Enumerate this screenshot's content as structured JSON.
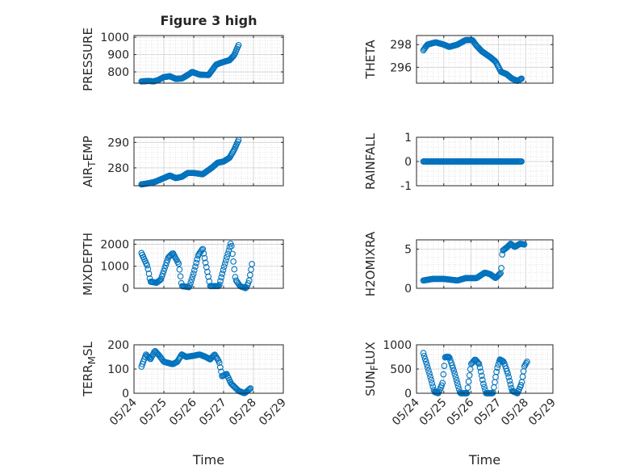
{
  "chart_data": [
    {
      "type": "scatter",
      "title": "Figure 3 high",
      "ylabel": "PRESSURE",
      "ylim": [
        735,
        1010
      ],
      "yticks": [
        800,
        900,
        1000
      ],
      "xlim": [
        0,
        5
      ],
      "xticks": [
        0,
        1,
        2,
        3,
        4,
        5
      ],
      "xticklabels": [],
      "grid": true,
      "anchors": [
        [
          0.25,
          745
        ],
        [
          0.5,
          748
        ],
        [
          0.65,
          745
        ],
        [
          0.8,
          752
        ],
        [
          1.0,
          770
        ],
        [
          1.2,
          775
        ],
        [
          1.4,
          760
        ],
        [
          1.6,
          762
        ],
        [
          1.8,
          782
        ],
        [
          1.95,
          800
        ],
        [
          2.2,
          784
        ],
        [
          2.5,
          782
        ],
        [
          2.75,
          842
        ],
        [
          2.9,
          852
        ],
        [
          3.2,
          868
        ],
        [
          3.35,
          895
        ],
        [
          3.5,
          955
        ]
      ]
    },
    {
      "type": "scatter",
      "title": "",
      "ylabel": "THETA",
      "ylim": [
        294.6,
        298.8
      ],
      "yticks": [
        296,
        298
      ],
      "xlim": [
        0,
        5
      ],
      "xticks": [
        0,
        1,
        2,
        3,
        4,
        5
      ],
      "xticklabels": [],
      "grid": true,
      "anchors": [
        [
          0.25,
          297.5
        ],
        [
          0.4,
          298.0
        ],
        [
          0.7,
          298.2
        ],
        [
          1.0,
          298.0
        ],
        [
          1.2,
          297.8
        ],
        [
          1.5,
          298.0
        ],
        [
          1.8,
          298.4
        ],
        [
          2.05,
          298.4
        ],
        [
          2.2,
          297.9
        ],
        [
          2.4,
          297.4
        ],
        [
          2.7,
          296.9
        ],
        [
          2.9,
          296.5
        ],
        [
          3.1,
          295.6
        ],
        [
          3.3,
          295.4
        ],
        [
          3.5,
          295.0
        ],
        [
          3.7,
          294.8
        ],
        [
          3.85,
          295.0
        ]
      ]
    },
    {
      "type": "scatter",
      "title": "",
      "ylabel": "AIR_TEMP",
      "ylim": [
        273,
        292
      ],
      "yticks": [
        280,
        290
      ],
      "xlim": [
        0,
        5
      ],
      "xticks": [
        0,
        1,
        2,
        3,
        4,
        5
      ],
      "xticklabels": [],
      "grid": true,
      "anchors": [
        [
          0.25,
          273.5
        ],
        [
          0.5,
          274.0
        ],
        [
          0.7,
          274.5
        ],
        [
          1.0,
          276.0
        ],
        [
          1.2,
          277.0
        ],
        [
          1.4,
          276.0
        ],
        [
          1.6,
          276.5
        ],
        [
          1.8,
          278.0
        ],
        [
          2.0,
          278.0
        ],
        [
          2.3,
          277.5
        ],
        [
          2.6,
          280.0
        ],
        [
          2.8,
          282.0
        ],
        [
          3.0,
          282.5
        ],
        [
          3.2,
          284.0
        ],
        [
          3.35,
          287.0
        ],
        [
          3.5,
          291.0
        ]
      ]
    },
    {
      "type": "scatter",
      "title": "",
      "ylabel": "RAINFALL",
      "ylim": [
        -1,
        1
      ],
      "yticks": [
        -1,
        0,
        1
      ],
      "xlim": [
        0,
        5
      ],
      "xticks": [
        0,
        1,
        2,
        3,
        4,
        5
      ],
      "xticklabels": [],
      "grid": true,
      "anchors": [
        [
          0.25,
          0
        ],
        [
          3.85,
          0
        ]
      ]
    },
    {
      "type": "scatter",
      "title": "",
      "ylabel": "MIXDEPTH",
      "ylim": [
        0,
        2200
      ],
      "yticks": [
        0,
        1000,
        2000
      ],
      "xlim": [
        0,
        5
      ],
      "xticks": [
        0,
        1,
        2,
        3,
        4,
        5
      ],
      "xticklabels": [],
      "grid": true,
      "anchors": [
        [
          0.25,
          1600
        ],
        [
          0.45,
          1000
        ],
        [
          0.55,
          300
        ],
        [
          0.75,
          250
        ],
        [
          0.9,
          400
        ],
        [
          1.15,
          1400
        ],
        [
          1.3,
          1600
        ],
        [
          1.5,
          1100
        ],
        [
          1.6,
          100
        ],
        [
          1.85,
          50
        ],
        [
          2.0,
          700
        ],
        [
          2.15,
          1500
        ],
        [
          2.3,
          1800
        ],
        [
          2.45,
          800
        ],
        [
          2.55,
          100
        ],
        [
          2.85,
          100
        ],
        [
          3.0,
          900
        ],
        [
          3.15,
          1600
        ],
        [
          3.25,
          2100
        ],
        [
          3.4,
          400
        ],
        [
          3.55,
          100
        ],
        [
          3.75,
          0
        ],
        [
          3.85,
          300
        ],
        [
          3.95,
          1100
        ]
      ]
    },
    {
      "type": "scatter",
      "title": "",
      "ylabel": "H2OMIXRA",
      "ylim": [
        0,
        6.2
      ],
      "yticks": [
        0,
        5
      ],
      "xlim": [
        0,
        5
      ],
      "xticks": [
        0,
        1,
        2,
        3,
        4,
        5
      ],
      "xticklabels": [],
      "grid": true,
      "anchors": [
        [
          0.25,
          1.0
        ],
        [
          0.6,
          1.2
        ],
        [
          1.0,
          1.2
        ],
        [
          1.5,
          1.0
        ],
        [
          1.8,
          1.3
        ],
        [
          2.2,
          1.3
        ],
        [
          2.5,
          2.0
        ],
        [
          2.7,
          1.8
        ],
        [
          2.9,
          1.3
        ],
        [
          3.1,
          2.0
        ],
        [
          3.15,
          4.8
        ],
        [
          3.3,
          5.2
        ],
        [
          3.45,
          5.7
        ],
        [
          3.6,
          5.3
        ],
        [
          3.8,
          5.7
        ],
        [
          3.95,
          5.6
        ]
      ]
    },
    {
      "type": "scatter",
      "title": "",
      "ylabel": "TERR_MSL",
      "ylim": [
        0,
        200
      ],
      "yticks": [
        0,
        100,
        200
      ],
      "xlim": [
        0,
        5
      ],
      "xticks": [
        0,
        1,
        2,
        3,
        4,
        5
      ],
      "xticklabels": [
        "05/24",
        "05/25",
        "05/26",
        "05/27",
        "05/28",
        "05/29"
      ],
      "xlabel": "Time",
      "grid": true,
      "anchors": [
        [
          0.25,
          110
        ],
        [
          0.4,
          160
        ],
        [
          0.55,
          140
        ],
        [
          0.7,
          175
        ],
        [
          0.85,
          155
        ],
        [
          1.0,
          130
        ],
        [
          1.3,
          120
        ],
        [
          1.45,
          130
        ],
        [
          1.6,
          160
        ],
        [
          1.75,
          150
        ],
        [
          2.0,
          155
        ],
        [
          2.2,
          160
        ],
        [
          2.4,
          150
        ],
        [
          2.55,
          140
        ],
        [
          2.7,
          160
        ],
        [
          2.85,
          130
        ],
        [
          2.95,
          70
        ],
        [
          3.1,
          80
        ],
        [
          3.25,
          40
        ],
        [
          3.5,
          10
        ],
        [
          3.7,
          0
        ],
        [
          3.9,
          20
        ]
      ]
    },
    {
      "type": "scatter",
      "title": "",
      "ylabel": "SUN_FLUX",
      "ylim": [
        0,
        1000
      ],
      "yticks": [
        0,
        500,
        1000
      ],
      "xlim": [
        0,
        5
      ],
      "xticks": [
        0,
        1,
        2,
        3,
        4,
        5
      ],
      "xticklabels": [
        "05/24",
        "05/25",
        "05/26",
        "05/27",
        "05/28",
        "05/29"
      ],
      "xlabel": "Time",
      "grid": true,
      "anchors": [
        [
          0.25,
          830
        ],
        [
          0.4,
          550
        ],
        [
          0.55,
          250
        ],
        [
          0.65,
          30
        ],
        [
          0.8,
          0
        ],
        [
          0.95,
          200
        ],
        [
          1.05,
          750
        ],
        [
          1.2,
          750
        ],
        [
          1.35,
          500
        ],
        [
          1.5,
          200
        ],
        [
          1.6,
          0
        ],
        [
          1.85,
          0
        ],
        [
          2.0,
          600
        ],
        [
          2.15,
          700
        ],
        [
          2.3,
          600
        ],
        [
          2.45,
          200
        ],
        [
          2.55,
          0
        ],
        [
          2.8,
          0
        ],
        [
          2.95,
          500
        ],
        [
          3.05,
          700
        ],
        [
          3.2,
          650
        ],
        [
          3.35,
          400
        ],
        [
          3.5,
          50
        ],
        [
          3.7,
          0
        ],
        [
          3.85,
          200
        ],
        [
          3.95,
          550
        ],
        [
          4.05,
          650
        ]
      ]
    }
  ]
}
